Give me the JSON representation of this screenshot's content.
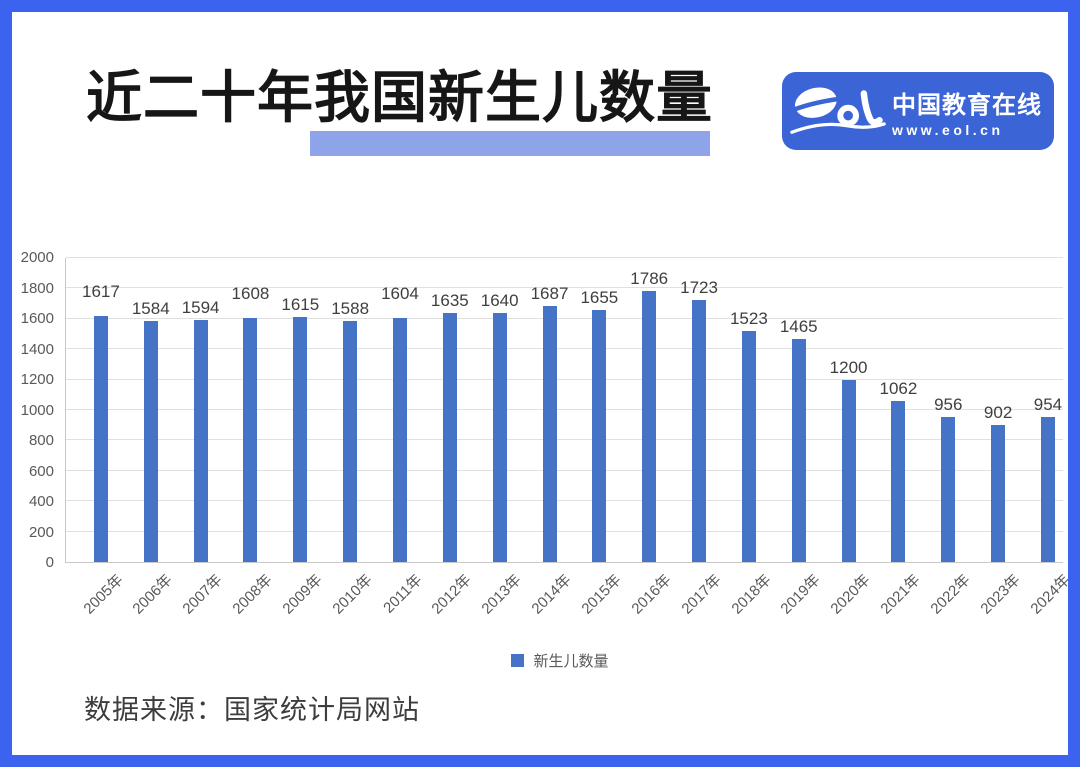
{
  "colors": {
    "border": "#3C62F0",
    "bar": "#4574C7",
    "title_highlight": "#8EA3E8",
    "logo_bg": "#3B65D6",
    "grid_line": "#E0E0E0",
    "axis_line": "#C9C9C9",
    "axis_text": "#595959",
    "value_label_text": "#3F3F3F",
    "title_text": "#161616",
    "source_text": "#3D3D3D"
  },
  "header": {
    "title": "近二十年我国新生儿数量",
    "title_part1": "近二十年",
    "title_part2": "我国新生儿数量"
  },
  "logo": {
    "brand": "eol",
    "name": "中国教育在线",
    "url": "www.eol.cn"
  },
  "chart_data": {
    "type": "bar",
    "title": "近二十年我国新生儿数量",
    "categories": [
      "2005年",
      "2006年",
      "2007年",
      "2008年",
      "2009年",
      "2010年",
      "2011年",
      "2012年",
      "2013年",
      "2014年",
      "2015年",
      "2016年",
      "2017年",
      "2018年",
      "2019年",
      "2020年",
      "2021年",
      "2022年",
      "2023年",
      "2024年"
    ],
    "values": [
      1617,
      1584,
      1594,
      1608,
      1615,
      1588,
      1604,
      1635,
      1640,
      1687,
      1655,
      1786,
      1723,
      1523,
      1465,
      1200,
      1062,
      956,
      902,
      954
    ],
    "series_name": "新生儿数量",
    "xlabel": "",
    "ylabel": "",
    "ylim": [
      0,
      2000
    ],
    "ytick_step": 200,
    "grid": true,
    "legend_position": "bottom"
  },
  "footer": {
    "source": "数据来源：国家统计局网站"
  }
}
